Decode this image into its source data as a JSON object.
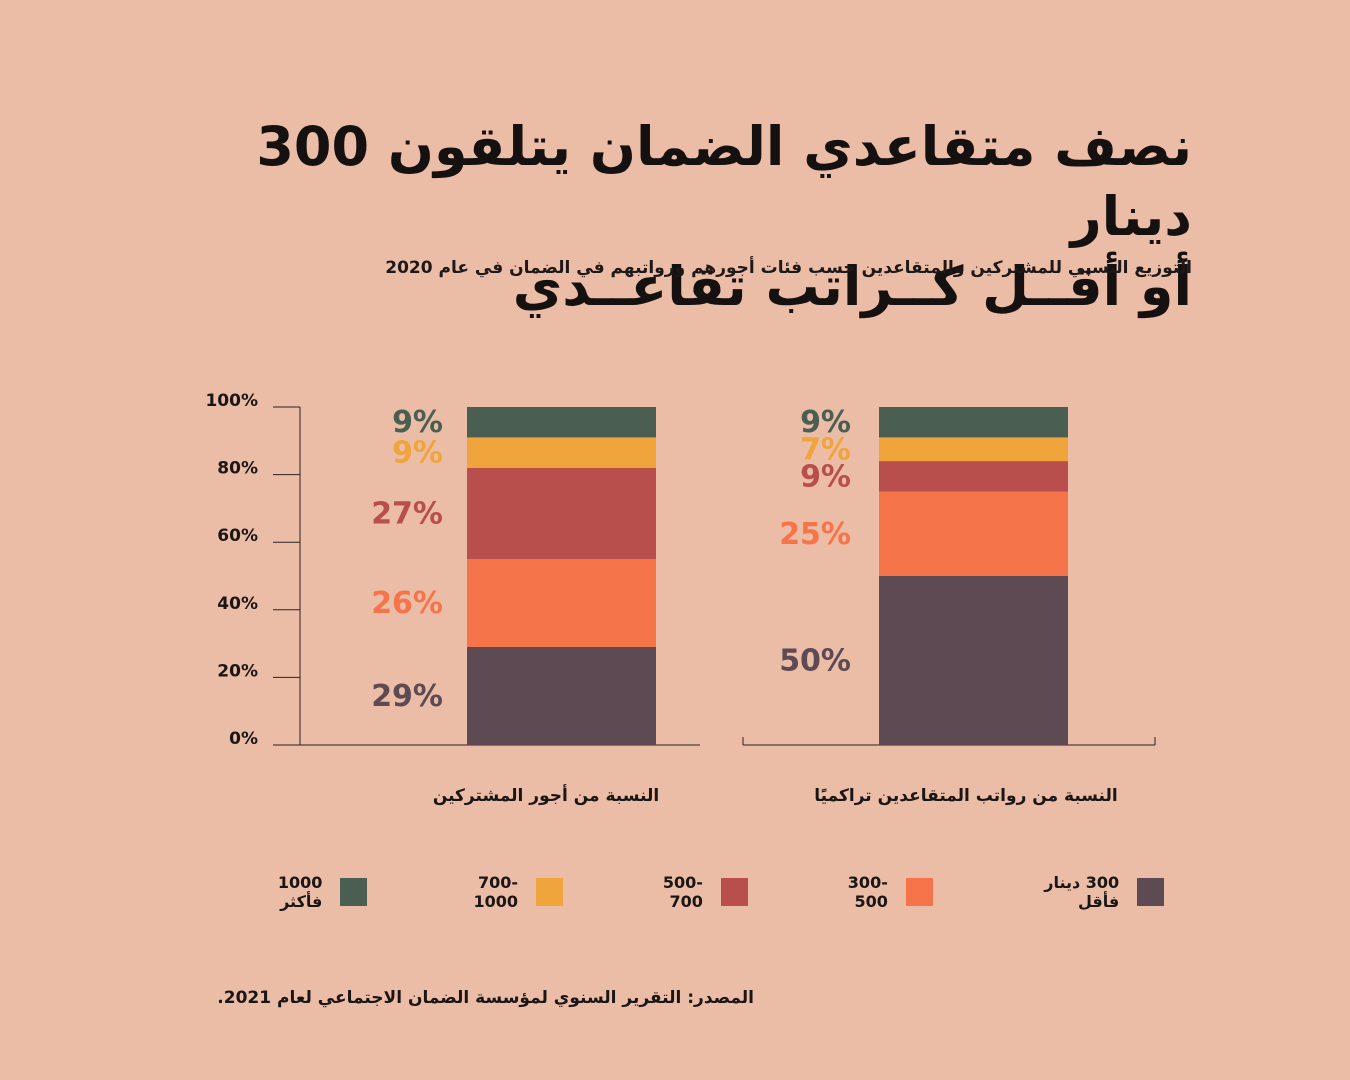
{
  "header": {
    "title_line1": "نصف متقاعدي الضمان يتلقون 300 دينار",
    "title_line2": "أو أقــل كــراتب تقاعــدي",
    "subtitle": "التوزيع النسبي للمشتركين والمتقاعدين حسب فئات أجورهم ورواتبهم في الضمان في عام 2020"
  },
  "legend": [
    {
      "label": "300 دينار فأقل",
      "color": "#5e4a53"
    },
    {
      "label": "300-500",
      "color": "#f5744a"
    },
    {
      "label": "500-700",
      "color": "#b94f4c"
    },
    {
      "label": "700-1000",
      "color": "#f0a43c"
    },
    {
      "label": "1000 فأكثر",
      "color": "#4b5e52"
    }
  ],
  "source": "المصدر: التقرير السنوي لمؤسسة الضمان الاجتماعي لعام 2021.",
  "chart_data": {
    "type": "bar",
    "stacked": true,
    "categories": [
      "النسبة من أجور المشتركين",
      "النسبة من رواتب المتقاعدين تراكميًا"
    ],
    "series": [
      {
        "name": "300 دينار فأقل",
        "values": [
          29,
          50
        ],
        "labels": [
          "29%",
          "50%"
        ],
        "color": "#5e4a53"
      },
      {
        "name": "300-500",
        "values": [
          26,
          25
        ],
        "labels": [
          "26%",
          "25%"
        ],
        "color": "#f5744a"
      },
      {
        "name": "500-700",
        "values": [
          27,
          9
        ],
        "labels": [
          "27%",
          "9%"
        ],
        "color": "#b94f4c"
      },
      {
        "name": "700-1000",
        "values": [
          9,
          7
        ],
        "labels": [
          "9%",
          "7%"
        ],
        "color": "#f0a43c"
      },
      {
        "name": "1000 فأكثر",
        "values": [
          9,
          9
        ],
        "labels": [
          "9%",
          "9%"
        ],
        "color": "#4b5e52"
      }
    ],
    "yticks": [
      "0%",
      "20%",
      "40%",
      "60%",
      "80%",
      "100%"
    ],
    "ylim": [
      0,
      100
    ],
    "legend_position": "bottom",
    "grid": false
  }
}
